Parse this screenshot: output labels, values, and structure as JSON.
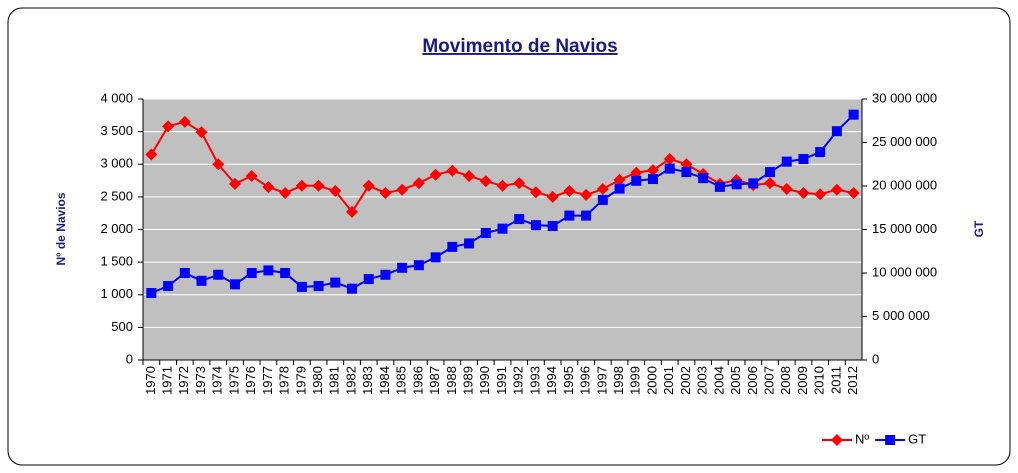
{
  "chart_data": {
    "type": "line",
    "title": "Movimento de Navios",
    "ylabel": "Nº de Navios",
    "y2label": "GT",
    "categories": [
      "1970",
      "1971",
      "1972",
      "1973",
      "1974",
      "1975",
      "1976",
      "1977",
      "1978",
      "1979",
      "1980",
      "1981",
      "1982",
      "1983",
      "1984",
      "1985",
      "1986",
      "1987",
      "1988",
      "1989",
      "1990",
      "1991",
      "1992",
      "1993",
      "1994",
      "1995",
      "1996",
      "1997",
      "1998",
      "1999",
      "2000",
      "2001",
      "2002",
      "2003",
      "2004",
      "2005",
      "2006",
      "2007",
      "2008",
      "2009",
      "2010",
      "2011",
      "2012"
    ],
    "series": [
      {
        "name": "Nº",
        "color": "#ff0000",
        "marker": "diamond",
        "values": [
          3150,
          3580,
          3650,
          3490,
          3000,
          2700,
          2820,
          2650,
          2560,
          2670,
          2670,
          2590,
          2270,
          2670,
          2560,
          2610,
          2710,
          2840,
          2900,
          2820,
          2740,
          2670,
          2710,
          2570,
          2500,
          2590,
          2530,
          2620,
          2760,
          2870,
          2910,
          3080,
          3000,
          2850,
          2700,
          2760,
          2680,
          2710,
          2620,
          2560,
          2540,
          2610,
          2560
        ]
      },
      {
        "name": "GT",
        "color": "#0000ff",
        "marker": "square",
        "axis": "y2",
        "values": [
          7700000,
          8500000,
          10000000,
          9100000,
          9800000,
          8700000,
          10000000,
          10300000,
          10000000,
          8400000,
          8500000,
          8900000,
          8200000,
          9300000,
          9800000,
          10600000,
          10900000,
          11800000,
          13000000,
          13400000,
          14600000,
          15100000,
          16200000,
          15500000,
          15400000,
          16600000,
          16600000,
          18400000,
          19700000,
          20600000,
          20800000,
          22000000,
          21600000,
          20900000,
          19900000,
          20200000,
          20300000,
          21600000,
          22800000,
          23100000,
          23900000,
          26300000,
          28200000
        ]
      }
    ],
    "ylim": [
      0,
      4000
    ],
    "yticks": [
      0,
      500,
      {
        "value": 1000,
        "label": "1 000"
      },
      {
        "value": 1500,
        "label": "1 500"
      },
      {
        "value": 2000,
        "label": "2 000"
      },
      {
        "value": 2500,
        "label": "2 500"
      },
      {
        "value": 3000,
        "label": "3 000"
      },
      {
        "value": 3500,
        "label": "3 500"
      },
      {
        "value": 4000,
        "label": "4 000"
      }
    ],
    "y2lim": [
      0,
      30000000
    ],
    "y2ticks": [
      0,
      {
        "value": 5000000,
        "label": "5 000 000"
      },
      {
        "value": 10000000,
        "label": "10 000 000"
      },
      {
        "value": 15000000,
        "label": "15 000 000"
      },
      {
        "value": 20000000,
        "label": "20 000 000"
      },
      {
        "value": 25000000,
        "label": "25 000 000"
      },
      {
        "value": 30000000,
        "label": "30 000 000"
      }
    ],
    "grid": true,
    "legend": "bottom-right"
  }
}
